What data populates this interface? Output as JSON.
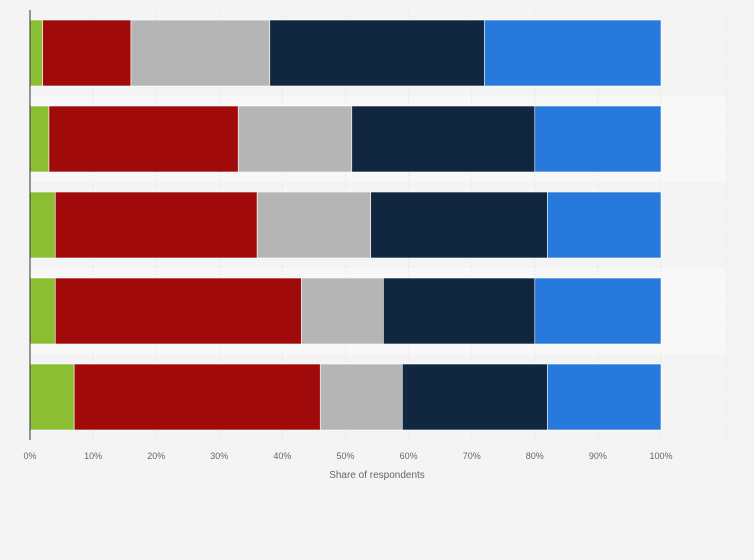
{
  "chart_data": {
    "type": "bar",
    "orientation": "horizontal",
    "stacked": true,
    "title": "",
    "xlabel": "Share of respondents",
    "ylabel": "",
    "xlim": [
      0,
      100
    ],
    "x_ticks": [
      "0%",
      "10%",
      "20%",
      "30%",
      "40%",
      "50%",
      "60%",
      "70%",
      "80%",
      "90%",
      "100%"
    ],
    "grid": true,
    "legend": "none",
    "categories": [
      "",
      "",
      "",
      "",
      ""
    ],
    "series": [
      {
        "color": "#8cbe34",
        "values": [
          2,
          3,
          4,
          4,
          7
        ]
      },
      {
        "color": "#a10a0a",
        "values": [
          14,
          30,
          32,
          39,
          39
        ]
      },
      {
        "color": "#b5b5b5",
        "values": [
          22,
          18,
          18,
          13,
          13
        ]
      },
      {
        "color": "#11263f",
        "values": [
          34,
          29,
          28,
          24,
          23
        ]
      },
      {
        "color": "#2779dc",
        "values": [
          28,
          20,
          18,
          20,
          18
        ]
      }
    ]
  }
}
